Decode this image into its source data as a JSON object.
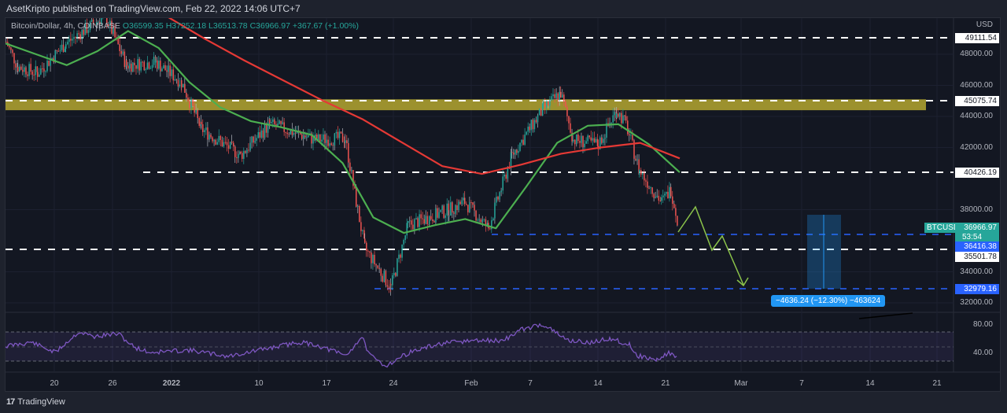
{
  "header": {
    "published": "AsetKripto published on TradingView.com, Feb 22, 2022 14:06 UTC+7"
  },
  "legend": {
    "symbol": "Bitcoin/Dollar, 4h, COINBASE",
    "open": "O36599.35",
    "high": "H37252.18",
    "low": "L36513.78",
    "close": "C36966.97",
    "change": "+367.67 (+1.00%)"
  },
  "price_axis": {
    "currency": "USD",
    "ticks": [
      {
        "label": "48000.00",
        "price": 48000
      },
      {
        "label": "46000.00",
        "price": 46000
      },
      {
        "label": "44000.00",
        "price": 44000
      },
      {
        "label": "42000.00",
        "price": 42000
      },
      {
        "label": "38000.00",
        "price": 38000
      },
      {
        "label": "34000.00",
        "price": 34000
      },
      {
        "label": "32000.00",
        "price": 32000
      }
    ],
    "tags": {
      "level_49111": "49111.54",
      "level_45075": "45075.74",
      "level_40426": "40426.19",
      "last_price": "36966.97",
      "symbol": "BTCUSD",
      "countdown": "53:54",
      "level_36416": "36416.38",
      "level_35501": "35501.78",
      "level_32979": "32979.16"
    }
  },
  "rsi_axis": {
    "ticks": [
      "80.00",
      "40.00"
    ]
  },
  "time_axis": {
    "labels": [
      {
        "label": "20",
        "x": 69
      },
      {
        "label": "26",
        "x": 143
      },
      {
        "label": "2022",
        "x": 218
      },
      {
        "label": "10",
        "x": 329
      },
      {
        "label": "17",
        "x": 415
      },
      {
        "label": "24",
        "x": 500
      },
      {
        "label": "Feb",
        "x": 599
      },
      {
        "label": "7",
        "x": 674
      },
      {
        "label": "14",
        "x": 760
      },
      {
        "label": "21",
        "x": 846
      },
      {
        "label": "Mar",
        "x": 942
      },
      {
        "label": "7",
        "x": 1019
      },
      {
        "label": "14",
        "x": 1106
      },
      {
        "label": "21",
        "x": 1191
      }
    ]
  },
  "measure": {
    "label": "−4636.24 (−12.30%) −463624"
  },
  "footer": {
    "brand": "TradingView",
    "logo": "17"
  },
  "colors": {
    "up": "#26a69a",
    "down": "#ef5350",
    "ma_fast": "#4caf50",
    "ma_slow": "#e53935",
    "resistance_zone": "#b5a730",
    "rsi": "#7e57c2",
    "blue_level": "#2962ff",
    "projection": "#8bc34a"
  },
  "chart_data": {
    "type": "candlestick",
    "title": "Bitcoin/Dollar, 4h, COINBASE",
    "ylabel": "USD",
    "ylim": [
      31500,
      50200
    ],
    "x_ticks": [
      "20",
      "26",
      "2022",
      "10",
      "17",
      "24",
      "Feb",
      "7",
      "14",
      "21",
      "Mar",
      "7",
      "14",
      "21"
    ],
    "y_ticks": [
      32000,
      34000,
      38000,
      42000,
      44000,
      46000,
      48000
    ],
    "last": {
      "open": 36599.35,
      "high": 37252.18,
      "low": 36513.78,
      "close": 36966.97,
      "change": 367.67,
      "change_pct": 1.0
    },
    "horizontal_levels": [
      49111.54,
      45075.74,
      40426.19,
      36416.38,
      35501.78,
      32979.16
    ],
    "resistance_zone": [
      44400,
      45100
    ],
    "price_path_approx": [
      {
        "date": "Dec 16",
        "price": 48800
      },
      {
        "date": "Dec 18",
        "price": 47200
      },
      {
        "date": "Dec 20",
        "price": 46800
      },
      {
        "date": "Dec 23",
        "price": 48700
      },
      {
        "date": "Dec 27",
        "price": 50500
      },
      {
        "date": "Dec 29",
        "price": 47300
      },
      {
        "date": "Jan 1",
        "price": 47500
      },
      {
        "date": "Jan 4",
        "price": 46200
      },
      {
        "date": "Jan 6",
        "price": 43200
      },
      {
        "date": "Jan 10",
        "price": 41500
      },
      {
        "date": "Jan 13",
        "price": 43500
      },
      {
        "date": "Jan 17",
        "price": 42500
      },
      {
        "date": "Jan 20",
        "price": 42600
      },
      {
        "date": "Jan 21",
        "price": 38500
      },
      {
        "date": "Jan 22",
        "price": 35500
      },
      {
        "date": "Jan 24",
        "price": 33000
      },
      {
        "date": "Jan 26",
        "price": 37000
      },
      {
        "date": "Jan 28",
        "price": 37500
      },
      {
        "date": "Jan 30",
        "price": 38000
      },
      {
        "date": "Feb 1",
        "price": 38500
      },
      {
        "date": "Feb 3",
        "price": 36800
      },
      {
        "date": "Feb 5",
        "price": 41500
      },
      {
        "date": "Feb 8",
        "price": 44500
      },
      {
        "date": "Feb 10",
        "price": 45500
      },
      {
        "date": "Feb 11",
        "price": 42500
      },
      {
        "date": "Feb 14",
        "price": 42200
      },
      {
        "date": "Feb 16",
        "price": 44400
      },
      {
        "date": "Feb 17",
        "price": 43500
      },
      {
        "date": "Feb 18",
        "price": 40500
      },
      {
        "date": "Feb 20",
        "price": 38500
      },
      {
        "date": "Feb 21",
        "price": 39300
      },
      {
        "date": "Feb 22",
        "price": 36966.97
      }
    ],
    "ma_fast_approx": [
      48700,
      48000,
      47300,
      48200,
      49500,
      48400,
      46200,
      44600,
      43700,
      43300,
      42800,
      41000,
      37500,
      36500,
      37000,
      37400,
      36800,
      39500,
      42300,
      43400,
      43500,
      42200,
      40400
    ],
    "ma_slow_approx": [
      50500,
      49000,
      47600,
      46300,
      45000,
      43800,
      42300,
      40800,
      40300,
      40900,
      41600,
      42000,
      42300,
      41300
    ],
    "projection_path": [
      36966,
      38200,
      35600,
      36400,
      33000
    ],
    "measurement": {
      "delta": -4636.24,
      "pct": -12.3,
      "text": "-4636.24 (-12.30%) -463624"
    },
    "rsi": {
      "ticks": [
        80,
        40
      ],
      "bands": [
        70,
        50,
        30
      ]
    }
  }
}
